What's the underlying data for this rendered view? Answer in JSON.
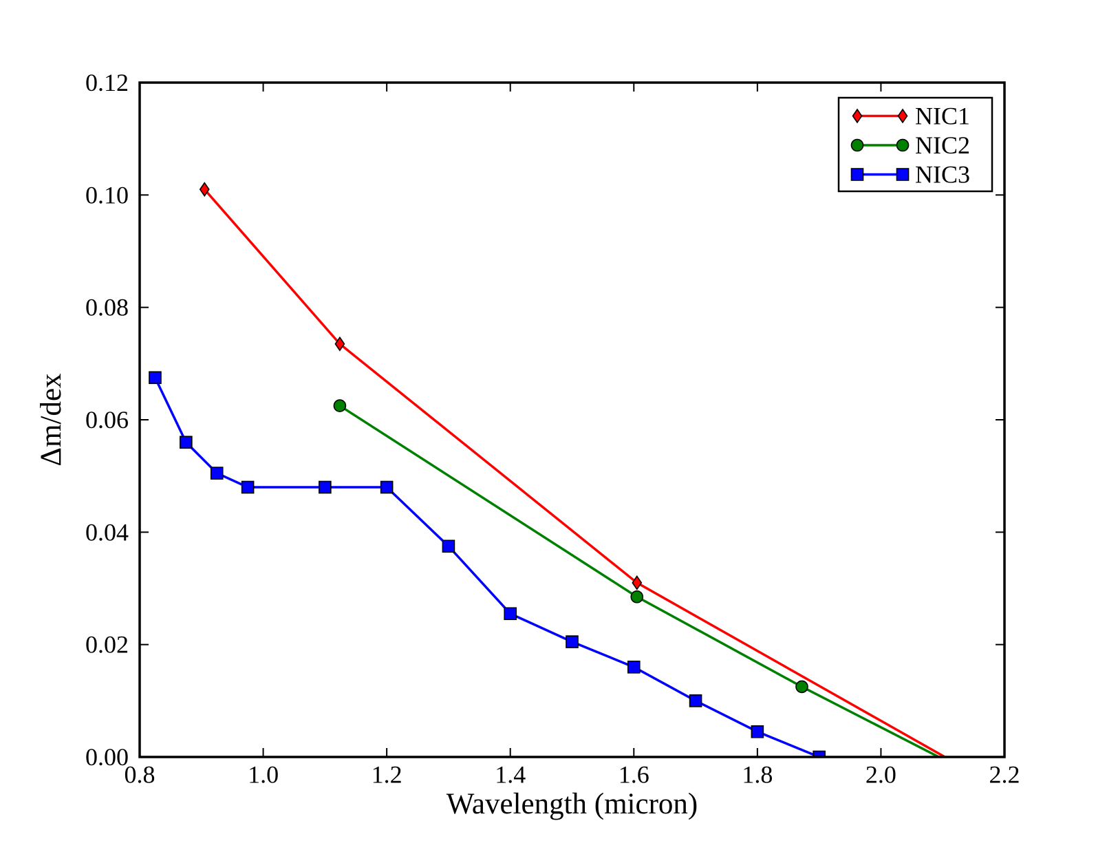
{
  "figure": {
    "background": "#ffffff",
    "axes_color": "#000000",
    "tick_direction": "in",
    "legend": {
      "position": "upper right",
      "border_color": "#000000",
      "background": "#ffffff"
    }
  },
  "chart_data": {
    "type": "line",
    "title": "",
    "xlabel": "Wavelength (micron)",
    "ylabel": "Δm/dex",
    "xlim": [
      0.8,
      2.2
    ],
    "ylim": [
      0.0,
      0.12
    ],
    "xticks": [
      0.8,
      1.0,
      1.2,
      1.4,
      1.6,
      1.8,
      2.0,
      2.2
    ],
    "xtick_labels": [
      "0.8",
      "1.0",
      "1.2",
      "1.4",
      "1.6",
      "1.8",
      "2.0",
      "2.2"
    ],
    "yticks": [
      0.0,
      0.02,
      0.04,
      0.06,
      0.08,
      0.1,
      0.12
    ],
    "ytick_labels": [
      "0.00",
      "0.02",
      "0.04",
      "0.06",
      "0.08",
      "0.10",
      "0.12"
    ],
    "grid": false,
    "legend_position": "upper right",
    "series": [
      {
        "name": "NIC1",
        "color": "#ff0000",
        "marker": "thin-diamond",
        "x": [
          0.905,
          1.124,
          1.605
        ],
        "y": [
          0.101,
          0.0735,
          0.031
        ],
        "line_extension": {
          "x": 2.2,
          "y": -0.006
        }
      },
      {
        "name": "NIC2",
        "color": "#008000",
        "marker": "circle",
        "x": [
          1.124,
          1.605,
          1.872
        ],
        "y": [
          0.0625,
          0.0285,
          0.0125
        ],
        "line_extension": {
          "x": 2.2,
          "y": -0.006
        }
      },
      {
        "name": "NIC3",
        "color": "#0000ff",
        "marker": "square",
        "x": [
          0.825,
          0.875,
          0.925,
          0.975,
          1.1,
          1.2,
          1.3,
          1.4,
          1.5,
          1.6,
          1.7,
          1.8,
          1.9
        ],
        "y": [
          0.0675,
          0.056,
          0.0505,
          0.048,
          0.048,
          0.048,
          0.0375,
          0.0255,
          0.0205,
          0.016,
          0.01,
          0.0045,
          0.0
        ]
      }
    ]
  }
}
